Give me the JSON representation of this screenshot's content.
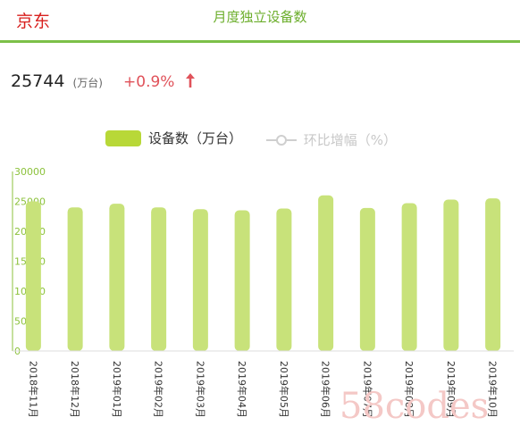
{
  "header": {
    "brand": "京东",
    "title": "月度独立设备数"
  },
  "kpi": {
    "value": "25744",
    "unit": "(万台)",
    "change": "+0.9%"
  },
  "legend": {
    "bar_label": "设备数（万台）",
    "line_label": "环比增幅（%）"
  },
  "colors": {
    "bar": "#c8e27a",
    "axis": "#8cc23c",
    "brand": "#d8201e",
    "accent": "#6cae2c",
    "change": "#e0525a"
  },
  "watermark": "58codes",
  "chart_data": {
    "type": "bar",
    "categories": [
      "2018年11月",
      "2018年12月",
      "2019年01月",
      "2019年02月",
      "2019年03月",
      "2019年04月",
      "2019年05月",
      "2019年06月",
      "2019年07月",
      "2019年08月",
      "2019年09月",
      "2019年10月"
    ],
    "series": [
      {
        "name": "设备数（万台）",
        "values": [
          25000,
          24000,
          24600,
          24000,
          23700,
          23500,
          23800,
          26000,
          23900,
          24700,
          25300,
          25500
        ]
      }
    ],
    "ylim": [
      0,
      30000
    ],
    "yticks": [
      0,
      5000,
      10000,
      15000,
      20000,
      25000,
      30000
    ],
    "legend": "top-center",
    "grid": false
  }
}
